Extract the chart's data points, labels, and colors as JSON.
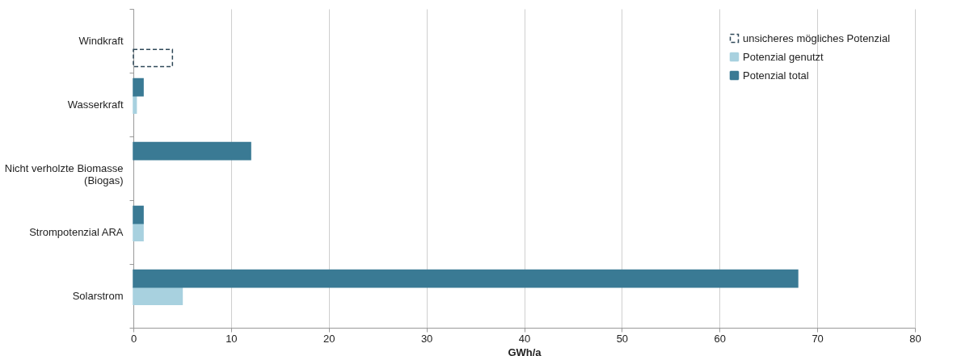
{
  "chart_data": {
    "type": "bar",
    "orientation": "horizontal",
    "xlabel": "GWh/a",
    "categories": [
      "Windkraft",
      "Wasserkraft",
      "Nicht verholzte Biomasse (Biogas)",
      "Strompotenzial ARA",
      "Solarstrom"
    ],
    "series": [
      {
        "name": "unsicheres mögliches Potenzial",
        "color": "#2f4858",
        "line_style": "dashed",
        "values": [
          4,
          null,
          null,
          null,
          null
        ]
      },
      {
        "name": "Potenzial genutzt",
        "color": "#a8d1df",
        "values": [
          null,
          0.3,
          null,
          1,
          5
        ]
      },
      {
        "name": "Potenzial total",
        "color": "#3a7a94",
        "values": [
          null,
          1,
          12,
          1,
          68
        ]
      }
    ],
    "xlim": [
      0,
      80
    ],
    "xticks": [
      0,
      10,
      20,
      30,
      40,
      50,
      60,
      70,
      80
    ],
    "grid": "x",
    "legend": "top right"
  }
}
